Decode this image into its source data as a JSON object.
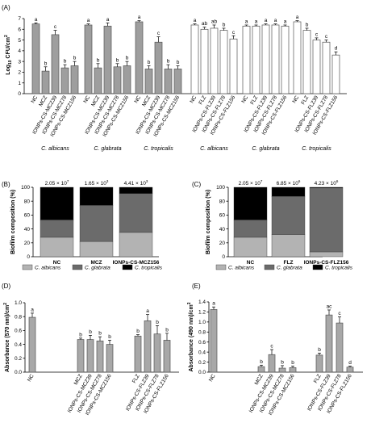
{
  "chart_data": [
    {
      "id": "A",
      "type": "bar",
      "panel_label": "(A)",
      "ylabel": "Log10 CFU/cm2",
      "ylabel_main": "Log",
      "ylabel_sub": "10",
      "ylabel_tail": " CFU/cm",
      "ylabel_sup": "2",
      "yticks": [
        "0",
        "1",
        "2",
        "3",
        "4",
        "5",
        "6",
        "7"
      ],
      "ylim": [
        0,
        7
      ],
      "groups": [
        {
          "species": "C. albicans",
          "fill": "#9e9e9e",
          "categories": [
            "NC",
            "MCZ",
            "IONPs-CS-MCZ39",
            "IONPs-CS-MCZ78",
            "IONPs-CS-MCZ156"
          ],
          "values": [
            6.5,
            2.1,
            5.5,
            2.4,
            2.6
          ],
          "errors": [
            0.1,
            0.4,
            0.4,
            0.3,
            0.4
          ],
          "letters": [
            "a",
            "b",
            "c",
            "b",
            "b"
          ]
        },
        {
          "species": "C. glabrata",
          "fill": "#9e9e9e",
          "categories": [
            "NC",
            "MCZ",
            "IONPs-CS-MCZ39",
            "IONPs-CS-MCZ78",
            "IONPs-CS-MCZ156"
          ],
          "values": [
            6.4,
            2.4,
            6.3,
            2.5,
            2.6
          ],
          "errors": [
            0.1,
            0.4,
            0.3,
            0.3,
            0.4
          ],
          "letters": [
            "a",
            "b",
            "a",
            "b",
            "b"
          ]
        },
        {
          "species": "C. tropicalis",
          "fill": "#9e9e9e",
          "categories": [
            "NC",
            "MCZ",
            "IONPs-CS-MCZ39",
            "IONPs-CS-MCZ78",
            "IONPs-CS-MCZ156"
          ],
          "values": [
            6.7,
            2.3,
            4.8,
            2.3,
            2.3
          ],
          "errors": [
            0.1,
            0.3,
            0.5,
            0.4,
            0.3
          ],
          "letters": [
            "a",
            "b",
            "c",
            "b",
            "b"
          ]
        },
        {
          "species": "C. albicans",
          "fill": "#ffffff",
          "categories": [
            "NC",
            "FLZ",
            "IONPs-CS-FLZ39",
            "IONPs-CS-FLZ78",
            "IONPs-CS-FLZ156"
          ],
          "values": [
            6.4,
            6.0,
            6.1,
            5.9,
            5.1
          ],
          "errors": [
            0.1,
            0.2,
            0.3,
            0.2,
            0.3
          ],
          "letters": [
            "a",
            "ab",
            "ab",
            "b",
            "c"
          ]
        },
        {
          "species": "C. glabrata",
          "fill": "#ffffff",
          "categories": [
            "NC",
            "FLZ",
            "IONPs-CS-FLZ39",
            "IONPs-CS-FLZ78",
            "IONPs-CS-FLZ156"
          ],
          "values": [
            6.3,
            6.3,
            6.4,
            6.4,
            6.3
          ],
          "errors": [
            0.1,
            0.1,
            0.1,
            0.1,
            0.1
          ],
          "letters": [
            "a",
            "a",
            "a",
            "a",
            "a"
          ]
        },
        {
          "species": "C. tropicalis",
          "fill": "#ffffff",
          "categories": [
            "NC",
            "FLZ",
            "IONPs-CS-FLZ39",
            "IONPs-CS-FLZ78",
            "IONPs-CS-FLZ156"
          ],
          "values": [
            6.7,
            5.9,
            5.0,
            4.8,
            3.6
          ],
          "errors": [
            0.1,
            0.2,
            0.2,
            0.2,
            0.3
          ],
          "letters": [
            "a",
            "b",
            "c",
            "c",
            "d"
          ]
        }
      ]
    },
    {
      "id": "B",
      "type": "stacked-bar",
      "panel_label": "(B)",
      "ylabel": "Biofilm composition (%)",
      "yticks": [
        "0",
        "20",
        "40",
        "60",
        "80",
        "100"
      ],
      "ylim": [
        0,
        100
      ],
      "categories": [
        "NC",
        "MCZ",
        "IONPs-CS-MCZ156"
      ],
      "totals_base": [
        "2.05 × 10",
        "1.65 × 10",
        "4.41 × 10"
      ],
      "totals_exp": [
        "7",
        "3",
        "3"
      ],
      "series": [
        {
          "name": "C. albicans",
          "color": "#b3b3b3",
          "values": [
            28,
            22,
            35
          ]
        },
        {
          "name": "C. glabrata",
          "color": "#6b6b6b",
          "values": [
            25,
            52,
            56
          ]
        },
        {
          "name": "C. tropicalis",
          "color": "#000000",
          "values": [
            47,
            26,
            9
          ]
        }
      ],
      "legend_position": "bottom"
    },
    {
      "id": "C",
      "type": "stacked-bar",
      "panel_label": "(C)",
      "ylabel": "Biofilm composition (%)",
      "yticks": [
        "0",
        "20",
        "40",
        "60",
        "80",
        "100"
      ],
      "ylim": [
        0,
        100
      ],
      "categories": [
        "NC",
        "FLZ",
        "IONPs-CS-FLZ156"
      ],
      "totals_base": [
        "2.05 × 10",
        "6.85 × 10",
        "4.23 × 10"
      ],
      "totals_exp": [
        "7",
        "6",
        "6"
      ],
      "series": [
        {
          "name": "C. albicans",
          "color": "#b3b3b3",
          "values": [
            28,
            32,
            7
          ]
        },
        {
          "name": "C. glabrata",
          "color": "#6b6b6b",
          "values": [
            25,
            55,
            92
          ]
        },
        {
          "name": "C. tropicalis",
          "color": "#000000",
          "values": [
            47,
            13,
            1
          ]
        }
      ],
      "legend_position": "bottom"
    },
    {
      "id": "D",
      "type": "bar",
      "panel_label": "(D)",
      "ylabel": "Absorbance (570 nm)/cm2",
      "ylabel_main": "Absorbance (570 nm)/cm",
      "ylabel_sup": "2",
      "yticks": [
        "0.0",
        "0.2",
        "0.4",
        "0.6",
        "0.8",
        "1.0"
      ],
      "ylim": [
        0,
        1.0
      ],
      "categories": [
        "NC",
        "MCZ",
        "IONPs-CS-MCZ39",
        "IONPs-CS-MCZ78",
        "IONPs-CS-MCZ156",
        "FLZ",
        "IONPs-CS-FLZ39",
        "IONPs-CS-FLZ78",
        "IONPs-CS-FLZ156"
      ],
      "values": [
        0.79,
        0.47,
        0.47,
        0.45,
        0.4,
        0.52,
        0.74,
        0.55,
        0.46
      ],
      "errors": [
        0.06,
        0.02,
        0.06,
        0.06,
        0.06,
        0.02,
        0.09,
        0.12,
        0.1
      ],
      "letters": [
        "a",
        "b",
        "b",
        "b",
        "b",
        "b",
        "a",
        "b",
        "b"
      ]
    },
    {
      "id": "E",
      "type": "bar",
      "panel_label": "(E)",
      "ylabel": "Absorbance (490 nm)/cm2",
      "ylabel_main": "Absorbance (490 nm)/cm",
      "ylabel_sup": "2",
      "yticks": [
        "0.0",
        "0.2",
        "0.4",
        "0.6",
        "0.8",
        "1.0",
        "1.2",
        "1.4"
      ],
      "ylim": [
        0,
        1.4
      ],
      "categories": [
        "NC",
        "MCZ",
        "IONPs-CS-MCZ39",
        "IONPs-CS-MCZ78",
        "IONPs-CS-MCZ156",
        "FLZ",
        "IONPs-CS-FLZ39",
        "IONPs-CS-FLZ78",
        "IONPs-CS-FLZ156"
      ],
      "values": [
        1.25,
        0.11,
        0.35,
        0.08,
        0.09,
        0.34,
        1.14,
        0.98,
        0.1
      ],
      "errors": [
        0.05,
        0.03,
        0.1,
        0.05,
        0.03,
        0.04,
        0.1,
        0.12,
        0.02
      ],
      "letters": [
        "a",
        "b",
        "c",
        "b",
        "b",
        "b",
        "ac",
        "c",
        "d"
      ]
    }
  ]
}
